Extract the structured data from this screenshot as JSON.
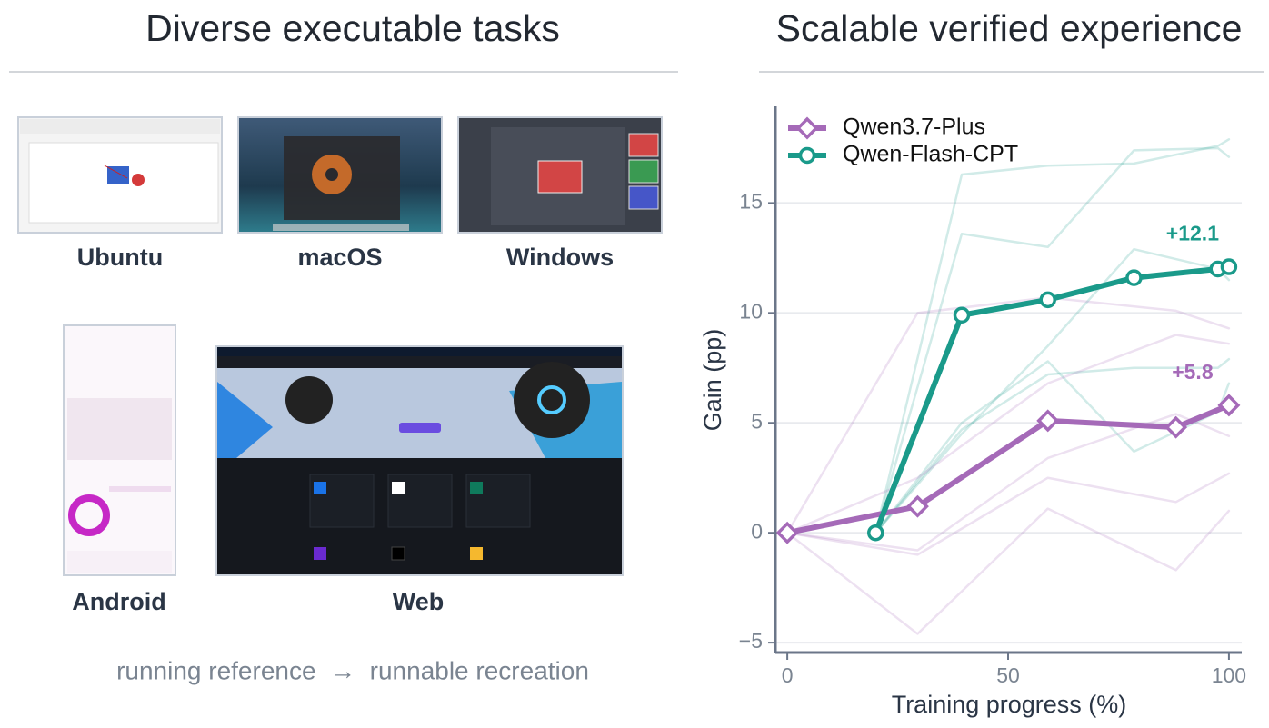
{
  "left_panel": {
    "title": "Diverse executable tasks",
    "platforms": [
      "Ubuntu",
      "macOS",
      "Windows",
      "Android",
      "Web"
    ],
    "caption": "running reference  →  runnable recreation"
  },
  "chart_data": {
    "type": "line",
    "title": "Scalable verified experience",
    "xlabel": "Training progress (%)",
    "ylabel": "Gain (pp)",
    "xlim": [
      -2.7,
      102.9
    ],
    "ylim": [
      -5.45,
      19.4
    ],
    "xticks": [
      0,
      50,
      100
    ],
    "yticks": [
      {
        "value": -5,
        "label": "−5"
      },
      0,
      5,
      10,
      15
    ],
    "grid": "y",
    "legend": "upper left",
    "series": [
      {
        "name": "Qwen3.7-Plus",
        "color": "#a56ab8",
        "marker": "diamond",
        "x": [
          0,
          29.5,
          59,
          88,
          100
        ],
        "values": [
          0,
          1.2,
          5.1,
          4.8,
          5.8
        ],
        "end_label": "+5.8"
      },
      {
        "name": "Qwen-Flash-CPT",
        "color": "#1a9a8a",
        "marker": "circle",
        "x": [
          20,
          39.5,
          59,
          78.5,
          97.5,
          100
        ],
        "values": [
          0,
          9.9,
          10.6,
          11.6,
          12.0,
          12.1
        ],
        "end_label": "+12.1"
      }
    ],
    "faint_series": [
      {
        "color": "#1a9a8a",
        "x": [
          20,
          39.5,
          59,
          78.5,
          97.5,
          100
        ],
        "values": [
          0,
          16.3,
          16.7,
          16.8,
          17.6,
          17.9
        ]
      },
      {
        "color": "#1a9a8a",
        "x": [
          20,
          39.5,
          59,
          78.5,
          97.5,
          100
        ],
        "values": [
          0,
          13.6,
          13.0,
          17.4,
          17.5,
          17.1
        ]
      },
      {
        "color": "#1a9a8a",
        "x": [
          20,
          39.5,
          59,
          78.5,
          97.5,
          100
        ],
        "values": [
          0,
          4.5,
          8.5,
          12.9,
          12.0,
          11.5
        ]
      },
      {
        "color": "#1a9a8a",
        "x": [
          20,
          39.5,
          59,
          78.5,
          97.5,
          100
        ],
        "values": [
          0,
          4.7,
          7.2,
          7.5,
          7.5,
          7.9
        ]
      },
      {
        "color": "#1a9a8a",
        "x": [
          20,
          39.5,
          59,
          78.5,
          97.5,
          100
        ],
        "values": [
          0,
          5.0,
          7.8,
          3.7,
          5.5,
          6.8
        ]
      },
      {
        "color": "#a56ab8",
        "x": [
          0,
          29.5,
          59,
          88,
          100
        ],
        "values": [
          0,
          10.0,
          10.7,
          10.1,
          9.3
        ]
      },
      {
        "color": "#a56ab8",
        "x": [
          0,
          29.5,
          59,
          88,
          100
        ],
        "values": [
          0,
          2.5,
          6.8,
          9.0,
          8.6
        ]
      },
      {
        "color": "#a56ab8",
        "x": [
          0,
          29.5,
          59,
          88,
          100
        ],
        "values": [
          0,
          -0.8,
          3.4,
          5.4,
          4.4
        ]
      },
      {
        "color": "#a56ab8",
        "x": [
          0,
          29.5,
          59,
          88,
          100
        ],
        "values": [
          0,
          -1.0,
          2.5,
          1.4,
          2.7
        ]
      },
      {
        "color": "#a56ab8",
        "x": [
          0,
          29.5,
          59,
          88,
          100
        ],
        "values": [
          0,
          -4.6,
          1.1,
          -1.7,
          1.0
        ]
      }
    ]
  }
}
